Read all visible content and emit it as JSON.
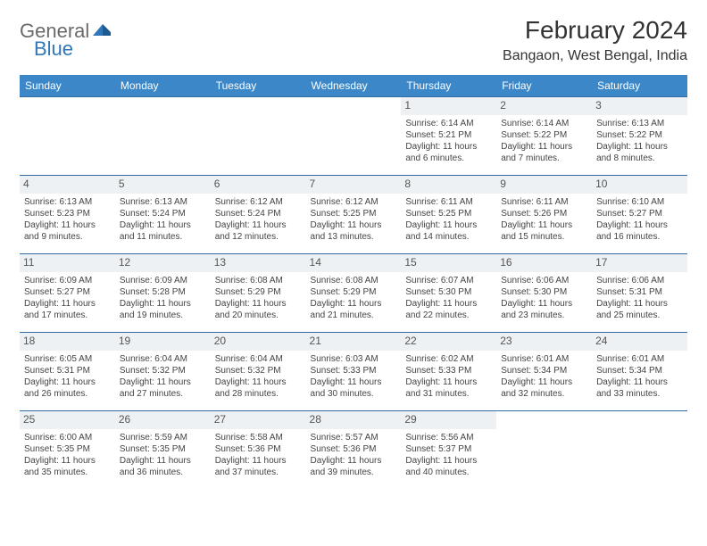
{
  "logo": {
    "word1": "General",
    "word2": "Blue",
    "accent": "#2f77b6",
    "gray": "#6a6a6a"
  },
  "title": "February 2024",
  "location": "Bangaon, West Bengal, India",
  "header_bg": "#3b87c8",
  "row_border": "#2f6aa0",
  "daynum_bg": "#eef1f3",
  "weekdays": [
    "Sunday",
    "Monday",
    "Tuesday",
    "Wednesday",
    "Thursday",
    "Friday",
    "Saturday"
  ],
  "weeks": [
    [
      null,
      null,
      null,
      null,
      {
        "n": "1",
        "sr": "Sunrise: 6:14 AM",
        "ss": "Sunset: 5:21 PM",
        "dl1": "Daylight: 11 hours",
        "dl2": "and 6 minutes."
      },
      {
        "n": "2",
        "sr": "Sunrise: 6:14 AM",
        "ss": "Sunset: 5:22 PM",
        "dl1": "Daylight: 11 hours",
        "dl2": "and 7 minutes."
      },
      {
        "n": "3",
        "sr": "Sunrise: 6:13 AM",
        "ss": "Sunset: 5:22 PM",
        "dl1": "Daylight: 11 hours",
        "dl2": "and 8 minutes."
      }
    ],
    [
      {
        "n": "4",
        "sr": "Sunrise: 6:13 AM",
        "ss": "Sunset: 5:23 PM",
        "dl1": "Daylight: 11 hours",
        "dl2": "and 9 minutes."
      },
      {
        "n": "5",
        "sr": "Sunrise: 6:13 AM",
        "ss": "Sunset: 5:24 PM",
        "dl1": "Daylight: 11 hours",
        "dl2": "and 11 minutes."
      },
      {
        "n": "6",
        "sr": "Sunrise: 6:12 AM",
        "ss": "Sunset: 5:24 PM",
        "dl1": "Daylight: 11 hours",
        "dl2": "and 12 minutes."
      },
      {
        "n": "7",
        "sr": "Sunrise: 6:12 AM",
        "ss": "Sunset: 5:25 PM",
        "dl1": "Daylight: 11 hours",
        "dl2": "and 13 minutes."
      },
      {
        "n": "8",
        "sr": "Sunrise: 6:11 AM",
        "ss": "Sunset: 5:25 PM",
        "dl1": "Daylight: 11 hours",
        "dl2": "and 14 minutes."
      },
      {
        "n": "9",
        "sr": "Sunrise: 6:11 AM",
        "ss": "Sunset: 5:26 PM",
        "dl1": "Daylight: 11 hours",
        "dl2": "and 15 minutes."
      },
      {
        "n": "10",
        "sr": "Sunrise: 6:10 AM",
        "ss": "Sunset: 5:27 PM",
        "dl1": "Daylight: 11 hours",
        "dl2": "and 16 minutes."
      }
    ],
    [
      {
        "n": "11",
        "sr": "Sunrise: 6:09 AM",
        "ss": "Sunset: 5:27 PM",
        "dl1": "Daylight: 11 hours",
        "dl2": "and 17 minutes."
      },
      {
        "n": "12",
        "sr": "Sunrise: 6:09 AM",
        "ss": "Sunset: 5:28 PM",
        "dl1": "Daylight: 11 hours",
        "dl2": "and 19 minutes."
      },
      {
        "n": "13",
        "sr": "Sunrise: 6:08 AM",
        "ss": "Sunset: 5:29 PM",
        "dl1": "Daylight: 11 hours",
        "dl2": "and 20 minutes."
      },
      {
        "n": "14",
        "sr": "Sunrise: 6:08 AM",
        "ss": "Sunset: 5:29 PM",
        "dl1": "Daylight: 11 hours",
        "dl2": "and 21 minutes."
      },
      {
        "n": "15",
        "sr": "Sunrise: 6:07 AM",
        "ss": "Sunset: 5:30 PM",
        "dl1": "Daylight: 11 hours",
        "dl2": "and 22 minutes."
      },
      {
        "n": "16",
        "sr": "Sunrise: 6:06 AM",
        "ss": "Sunset: 5:30 PM",
        "dl1": "Daylight: 11 hours",
        "dl2": "and 23 minutes."
      },
      {
        "n": "17",
        "sr": "Sunrise: 6:06 AM",
        "ss": "Sunset: 5:31 PM",
        "dl1": "Daylight: 11 hours",
        "dl2": "and 25 minutes."
      }
    ],
    [
      {
        "n": "18",
        "sr": "Sunrise: 6:05 AM",
        "ss": "Sunset: 5:31 PM",
        "dl1": "Daylight: 11 hours",
        "dl2": "and 26 minutes."
      },
      {
        "n": "19",
        "sr": "Sunrise: 6:04 AM",
        "ss": "Sunset: 5:32 PM",
        "dl1": "Daylight: 11 hours",
        "dl2": "and 27 minutes."
      },
      {
        "n": "20",
        "sr": "Sunrise: 6:04 AM",
        "ss": "Sunset: 5:32 PM",
        "dl1": "Daylight: 11 hours",
        "dl2": "and 28 minutes."
      },
      {
        "n": "21",
        "sr": "Sunrise: 6:03 AM",
        "ss": "Sunset: 5:33 PM",
        "dl1": "Daylight: 11 hours",
        "dl2": "and 30 minutes."
      },
      {
        "n": "22",
        "sr": "Sunrise: 6:02 AM",
        "ss": "Sunset: 5:33 PM",
        "dl1": "Daylight: 11 hours",
        "dl2": "and 31 minutes."
      },
      {
        "n": "23",
        "sr": "Sunrise: 6:01 AM",
        "ss": "Sunset: 5:34 PM",
        "dl1": "Daylight: 11 hours",
        "dl2": "and 32 minutes."
      },
      {
        "n": "24",
        "sr": "Sunrise: 6:01 AM",
        "ss": "Sunset: 5:34 PM",
        "dl1": "Daylight: 11 hours",
        "dl2": "and 33 minutes."
      }
    ],
    [
      {
        "n": "25",
        "sr": "Sunrise: 6:00 AM",
        "ss": "Sunset: 5:35 PM",
        "dl1": "Daylight: 11 hours",
        "dl2": "and 35 minutes."
      },
      {
        "n": "26",
        "sr": "Sunrise: 5:59 AM",
        "ss": "Sunset: 5:35 PM",
        "dl1": "Daylight: 11 hours",
        "dl2": "and 36 minutes."
      },
      {
        "n": "27",
        "sr": "Sunrise: 5:58 AM",
        "ss": "Sunset: 5:36 PM",
        "dl1": "Daylight: 11 hours",
        "dl2": "and 37 minutes."
      },
      {
        "n": "28",
        "sr": "Sunrise: 5:57 AM",
        "ss": "Sunset: 5:36 PM",
        "dl1": "Daylight: 11 hours",
        "dl2": "and 39 minutes."
      },
      {
        "n": "29",
        "sr": "Sunrise: 5:56 AM",
        "ss": "Sunset: 5:37 PM",
        "dl1": "Daylight: 11 hours",
        "dl2": "and 40 minutes."
      },
      null,
      null
    ]
  ]
}
